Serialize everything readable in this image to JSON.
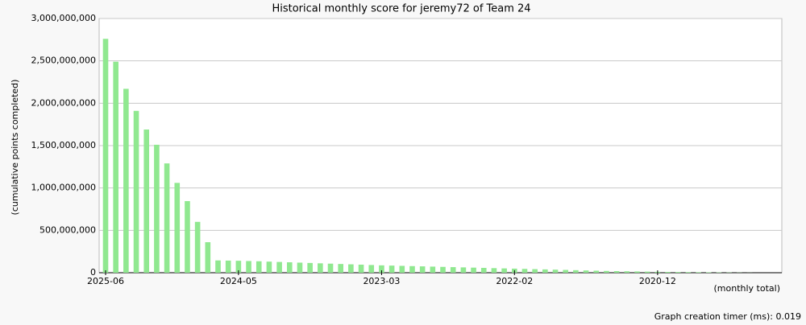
{
  "chart_data": {
    "type": "bar",
    "title": "Historical monthly score for jeremy72 of Team 24",
    "y_label": "(cumulative points completed)",
    "x_label": "(monthly total)",
    "footer": "Graph creation timer (ms): 0.019",
    "color": "#90e890",
    "grid": true,
    "ylim": [
      0,
      3000000000
    ],
    "yticks": [
      0,
      {
        "value": 500000000,
        "label": "500,000,000"
      },
      {
        "value": 1000000000,
        "label": "1,000,000,000"
      },
      {
        "value": 1500000000,
        "label": "1,500,000,000"
      },
      {
        "value": 2000000000,
        "label": "2,000,000,000"
      },
      {
        "value": 2500000000,
        "label": "2,500,000,000"
      },
      {
        "value": 3000000000,
        "label": "3,000,000,000"
      }
    ],
    "categories": [
      "2025-06",
      null,
      null,
      null,
      null,
      null,
      null,
      null,
      null,
      null,
      null,
      null,
      null,
      "2024-05",
      null,
      null,
      null,
      null,
      null,
      null,
      null,
      null,
      null,
      null,
      null,
      null,
      null,
      "2023-03",
      null,
      null,
      null,
      null,
      null,
      null,
      null,
      null,
      null,
      null,
      null,
      null,
      "2022-02",
      null,
      null,
      null,
      null,
      null,
      null,
      null,
      null,
      null,
      null,
      null,
      null,
      null,
      "2020-12",
      null,
      null,
      null,
      null,
      null,
      null,
      null,
      null,
      null
    ],
    "values": [
      2760000000,
      2490000000,
      2170000000,
      1910000000,
      1690000000,
      1510000000,
      1290000000,
      1060000000,
      845000000,
      600000000,
      360000000,
      145000000,
      143000000,
      141000000,
      138000000,
      135000000,
      131000000,
      127000000,
      123000000,
      119000000,
      115000000,
      111000000,
      107000000,
      103000000,
      99000000,
      95000000,
      91000000,
      87000000,
      84000000,
      81000000,
      78000000,
      75000000,
      72000000,
      69000000,
      66000000,
      63000000,
      60000000,
      57000000,
      54000000,
      51000000,
      48000000,
      45000000,
      42000000,
      39000000,
      36000000,
      33000000,
      30000000,
      27000000,
      24000000,
      21000000,
      19000000,
      17000000,
      15000000,
      13000000,
      11000000,
      9000000,
      8000000,
      7000000,
      6000000,
      5000000,
      4000000,
      3000000,
      2000000,
      1000000
    ]
  }
}
